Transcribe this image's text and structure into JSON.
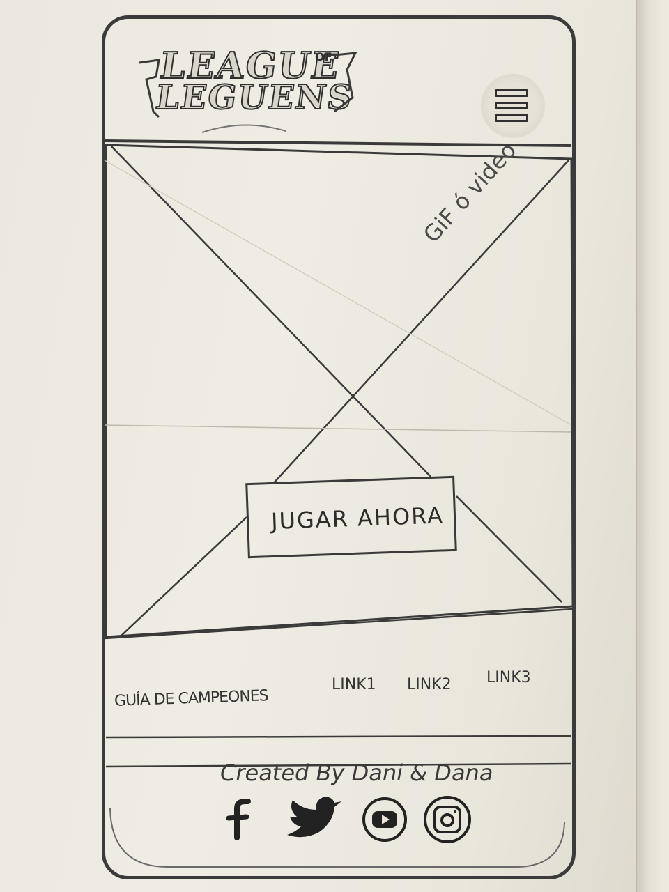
{
  "header": {
    "logo": {
      "line1": "LEAGUE",
      "of": "OF",
      "line2": "LEGUENS"
    },
    "menu_icon": "hamburger-menu-icon"
  },
  "hero": {
    "media_placeholder_label": "GiF ó video",
    "cta_label": "JUGAR AHORA"
  },
  "nav": {
    "items": [
      {
        "label": "GUÍA DE CAMPEONES"
      },
      {
        "label": "LINK1"
      },
      {
        "label": "LINK2"
      },
      {
        "label": "LINK3"
      }
    ]
  },
  "footer": {
    "credit": "Created By Dani & Dana",
    "socials": [
      {
        "icon": "facebook-icon"
      },
      {
        "icon": "twitter-icon"
      },
      {
        "icon": "youtube-icon"
      },
      {
        "icon": "instagram-icon"
      }
    ]
  },
  "colors": {
    "paper": "#ece9e0",
    "pencil": "#3a3a3a"
  }
}
